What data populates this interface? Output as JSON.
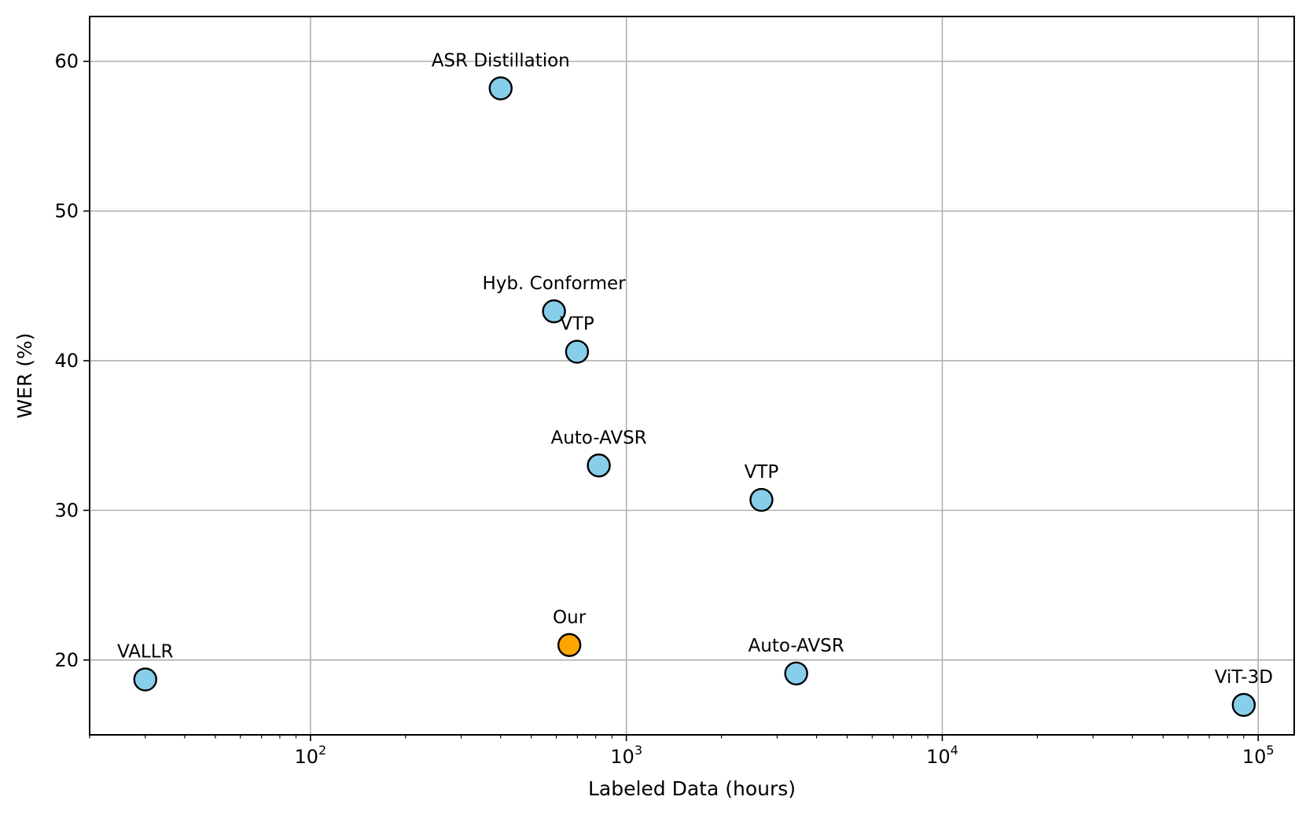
{
  "chart_data": {
    "type": "scatter",
    "title": "",
    "xlabel": "Labeled Data (hours)",
    "ylabel": "WER (%)",
    "xscale": "log",
    "xlim": [
      20,
      130000
    ],
    "ylim": [
      15,
      63
    ],
    "grid": true,
    "x_ticks": [
      {
        "base": "10",
        "exp": "2",
        "value": 100
      },
      {
        "base": "10",
        "exp": "3",
        "value": 1000
      },
      {
        "base": "10",
        "exp": "4",
        "value": 10000
      },
      {
        "base": "10",
        "exp": "5",
        "value": 100000
      }
    ],
    "y_ticks": [
      "20",
      "30",
      "40",
      "50",
      "60"
    ],
    "colors": {
      "baseline": "#87ceeb",
      "ours": "#ffa500",
      "edge": "#000000",
      "grid": "#b0b0b0"
    },
    "points": [
      {
        "label": "VALLR",
        "x": 30,
        "y": 18.7,
        "group": "baseline"
      },
      {
        "label": "ASR Distillation",
        "x": 400,
        "y": 58.2,
        "group": "baseline"
      },
      {
        "label": "Hyb. Conformer",
        "x": 590,
        "y": 43.3,
        "group": "baseline"
      },
      {
        "label": "VTP",
        "x": 698,
        "y": 40.6,
        "group": "baseline"
      },
      {
        "label": "Our",
        "x": 660,
        "y": 21.0,
        "group": "ours"
      },
      {
        "label": "Auto-AVSR",
        "x": 818,
        "y": 33.0,
        "group": "baseline"
      },
      {
        "label": "VTP",
        "x": 2676,
        "y": 30.7,
        "group": "baseline"
      },
      {
        "label": "Auto-AVSR",
        "x": 3448,
        "y": 19.1,
        "group": "baseline"
      },
      {
        "label": "ViT-3D",
        "x": 90000,
        "y": 17.0,
        "group": "baseline"
      }
    ]
  }
}
